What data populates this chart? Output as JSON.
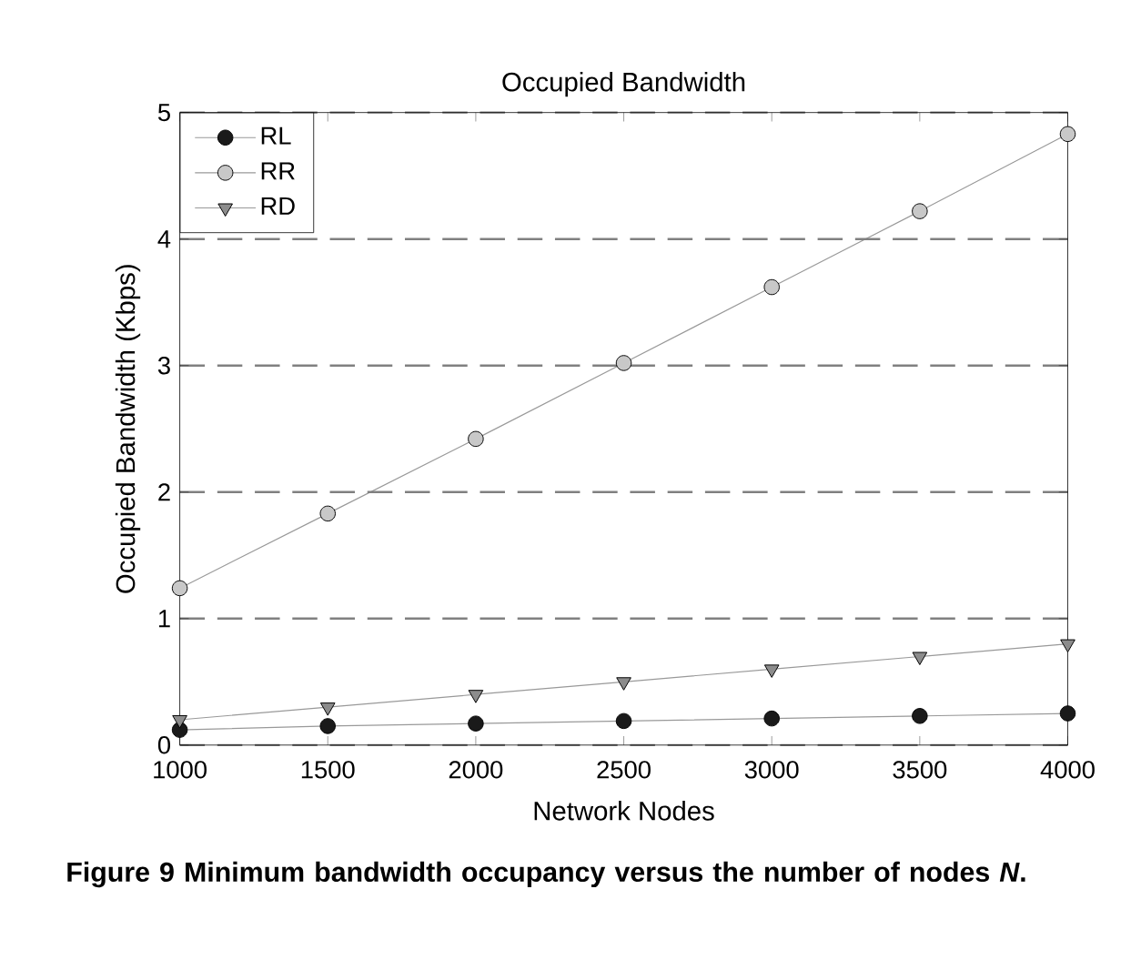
{
  "chart_data": {
    "type": "line",
    "title": "Occupied Bandwidth",
    "xlabel": "Network Nodes",
    "ylabel": "Occupied Bandwidth (Kbps)",
    "x": [
      1000,
      1500,
      2000,
      2500,
      3000,
      3500,
      4000
    ],
    "series": [
      {
        "name": "RL",
        "color": "#1a1a1a",
        "marker": "circle",
        "values": [
          0.12,
          0.15,
          0.17,
          0.19,
          0.21,
          0.23,
          0.25
        ]
      },
      {
        "name": "RR",
        "color": "#c8c8c8",
        "marker": "circle",
        "values": [
          1.24,
          1.83,
          2.42,
          3.02,
          3.62,
          4.22,
          4.83
        ]
      },
      {
        "name": "RD",
        "color": "#8c8c8c",
        "marker": "triangle",
        "values": [
          0.2,
          0.3,
          0.4,
          0.5,
          0.6,
          0.7,
          0.8
        ]
      }
    ],
    "xlim": [
      1000,
      4000
    ],
    "xticks": [
      1000,
      1500,
      2000,
      2500,
      3000,
      3500,
      4000
    ],
    "ylim": [
      0,
      5
    ],
    "yticks": [
      0,
      1,
      2,
      3,
      4,
      5
    ],
    "grid": "y",
    "legend": "top left",
    "annotations": [
      "Figure 9 Minimum bandwidth occupancy versus the number of nodes *N*."
    ]
  }
}
